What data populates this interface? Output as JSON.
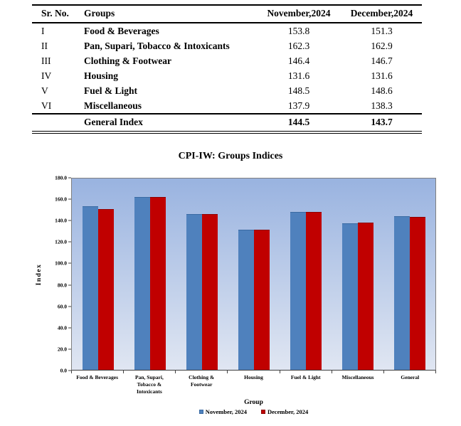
{
  "table": {
    "headers": {
      "sr": "Sr. No.",
      "group": "Groups",
      "nov": "November,2024",
      "dec": "December,2024"
    },
    "rows": [
      {
        "sr": "I",
        "group": "Food & Beverages",
        "nov": "153.8",
        "dec": "151.3"
      },
      {
        "sr": "II",
        "group": "Pan, Supari, Tobacco & Intoxicants",
        "nov": "162.3",
        "dec": "162.9"
      },
      {
        "sr": "III",
        "group": "Clothing & Footwear",
        "nov": "146.4",
        "dec": "146.7"
      },
      {
        "sr": "IV",
        "group": "Housing",
        "nov": "131.6",
        "dec": "131.6"
      },
      {
        "sr": "V",
        "group": "Fuel & Light",
        "nov": "148.5",
        "dec": "148.6"
      },
      {
        "sr": "VI",
        "group": "Miscellaneous",
        "nov": "137.9",
        "dec": "138.3"
      }
    ],
    "footer": {
      "sr": "",
      "group": "General Index",
      "nov": "144.5",
      "dec": "143.7"
    }
  },
  "chart_data": {
    "type": "bar",
    "title": "CPI-IW: Groups Indices",
    "categories": [
      "Food & Beverages",
      "Pan, Supari, Tobacco & Intoxicants",
      "Clothing & Footwear",
      "Housing",
      "Fuel & Light",
      "Miscellaneous",
      "General"
    ],
    "series": [
      {
        "name": "November, 2024",
        "color": "#4f81bd",
        "border": "#3a6aa3",
        "values": [
          153.8,
          162.3,
          146.4,
          131.6,
          148.5,
          137.9,
          144.5
        ]
      },
      {
        "name": "December, 2024",
        "color": "#c00000",
        "border": "#8e0000",
        "values": [
          151.3,
          162.9,
          146.7,
          131.6,
          148.6,
          138.3,
          143.7
        ]
      }
    ],
    "xlabel": "Group",
    "ylabel": "Index",
    "ylim": [
      0,
      180
    ],
    "yticks": [
      "180.0",
      "160.0",
      "140.0",
      "120.0",
      "100.0",
      "80.0",
      "60.0",
      "40.0",
      "20.0",
      "0.0"
    ],
    "grid": false,
    "legend_position": "bottom",
    "plot_bg_top": "#99b3e0",
    "plot_bg_bottom": "#e0e6f2",
    "axis_color": "#404040"
  }
}
